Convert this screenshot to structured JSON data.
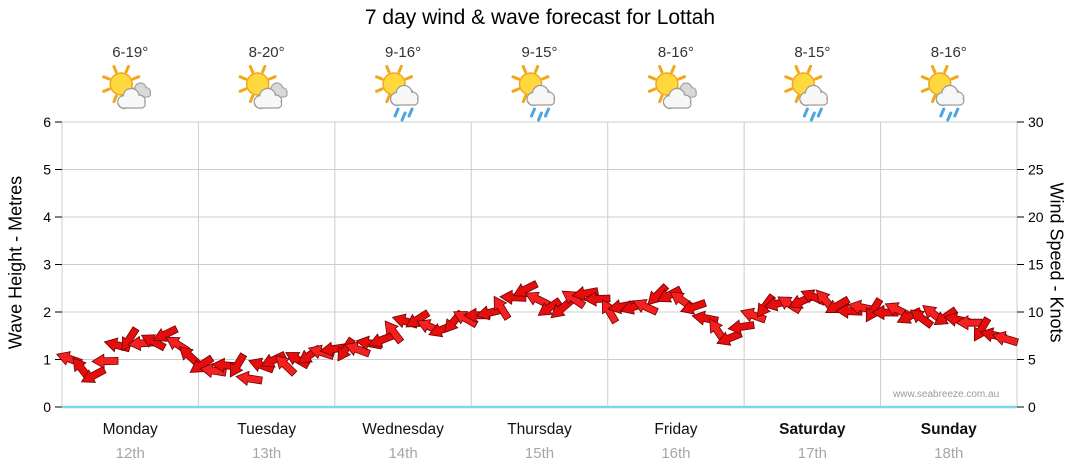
{
  "chart_data": {
    "type": "line",
    "title": "7 day wind & wave forecast for Lottah",
    "ylabel": "Wave Height - Metres",
    "y2label": "Wind Speed - Knots",
    "ylim": [
      0,
      6
    ],
    "y2lim": [
      0,
      30
    ],
    "left_ticks": [
      0,
      1,
      2,
      3,
      4,
      5,
      6
    ],
    "right_ticks": [
      0,
      5,
      10,
      15,
      20,
      25,
      30
    ],
    "grid": true,
    "days": [
      {
        "name": "Monday",
        "date": "12th",
        "temp": "6-19°",
        "icon": "partly-cloudy",
        "weekend": false
      },
      {
        "name": "Tuesday",
        "date": "13th",
        "temp": "8-20°",
        "icon": "partly-cloudy",
        "weekend": false
      },
      {
        "name": "Wednesday",
        "date": "14th",
        "temp": "9-16°",
        "icon": "showers",
        "weekend": false
      },
      {
        "name": "Thursday",
        "date": "15th",
        "temp": "9-15°",
        "icon": "showers",
        "weekend": false
      },
      {
        "name": "Friday",
        "date": "16th",
        "temp": "8-16°",
        "icon": "partly-cloudy",
        "weekend": false
      },
      {
        "name": "Saturday",
        "date": "17th",
        "temp": "8-15°",
        "icon": "showers",
        "weekend": true
      },
      {
        "name": "Sunday",
        "date": "18th",
        "temp": "8-16°",
        "icon": "showers",
        "weekend": true
      }
    ],
    "series": [
      {
        "name": "Wind Speed",
        "unit": "knots",
        "color": "#e60d0d",
        "step_hours": 3,
        "values": [
          5.5,
          4.5,
          3.2,
          6.0,
          7.2,
          6.8,
          7.5,
          6.0,
          4.8,
          3.8,
          4.5,
          3.0,
          5.5,
          4.2,
          5.0,
          6.0,
          6.2,
          5.5,
          6.8,
          7.5,
          8.8,
          9.0,
          8.2,
          9.0,
          9.2,
          10.0,
          11.0,
          12.3,
          11.0,
          10.2,
          11.5,
          11.8,
          10.2,
          11.0,
          10.0,
          11.8,
          12.0,
          10.5,
          8.5,
          7.2,
          9.0,
          10.2,
          10.8,
          11.2,
          11.6,
          10.8,
          10.2,
          10.8,
          9.5,
          10.2,
          9.5,
          9.8,
          9.0,
          9.3,
          8.2,
          7.0,
          6.8
        ]
      }
    ],
    "colors": {
      "arrow": "#e60d0d",
      "arrow_alt": "#f52020",
      "arrow_outline": "#700000",
      "grid": "#cccccc",
      "bottom_axis": "#7fd4f0",
      "date_text": "#a6a6a6",
      "temp_text": "#333333"
    },
    "watermark": "www.seabreeze.com.au"
  }
}
